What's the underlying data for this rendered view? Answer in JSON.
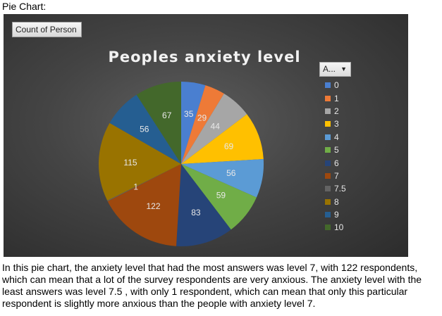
{
  "heading": "Pie Chart:",
  "field_button": "Count of Person",
  "legend_filter": "A...",
  "description": "In this pie chart, the anxiety level that had the most answers was level 7, with 122 respondents, which can mean that a lot of the survey respondents are very anxious. The anxiety level with the least answers was level 7.5 , with only 1 respondent, which can mean that only this particular respondent is slightly more anxious than the people with anxiety level 7.",
  "chart_data": {
    "type": "pie",
    "title": "Peoples anxiety level",
    "legend_position": "right",
    "categories": [
      "0",
      "1",
      "2",
      "3",
      "4",
      "5",
      "6",
      "7",
      "7.5",
      "8",
      "9",
      "10"
    ],
    "values": [
      35,
      29,
      44,
      69,
      56,
      59,
      83,
      122,
      1,
      115,
      56,
      67
    ],
    "colors": [
      "#4a7fd0",
      "#ee7a37",
      "#a6a6a6",
      "#ffc000",
      "#5b9bd5",
      "#70ad47",
      "#264478",
      "#9e480e",
      "#636363",
      "#997300",
      "#255e91",
      "#43682b"
    ]
  }
}
